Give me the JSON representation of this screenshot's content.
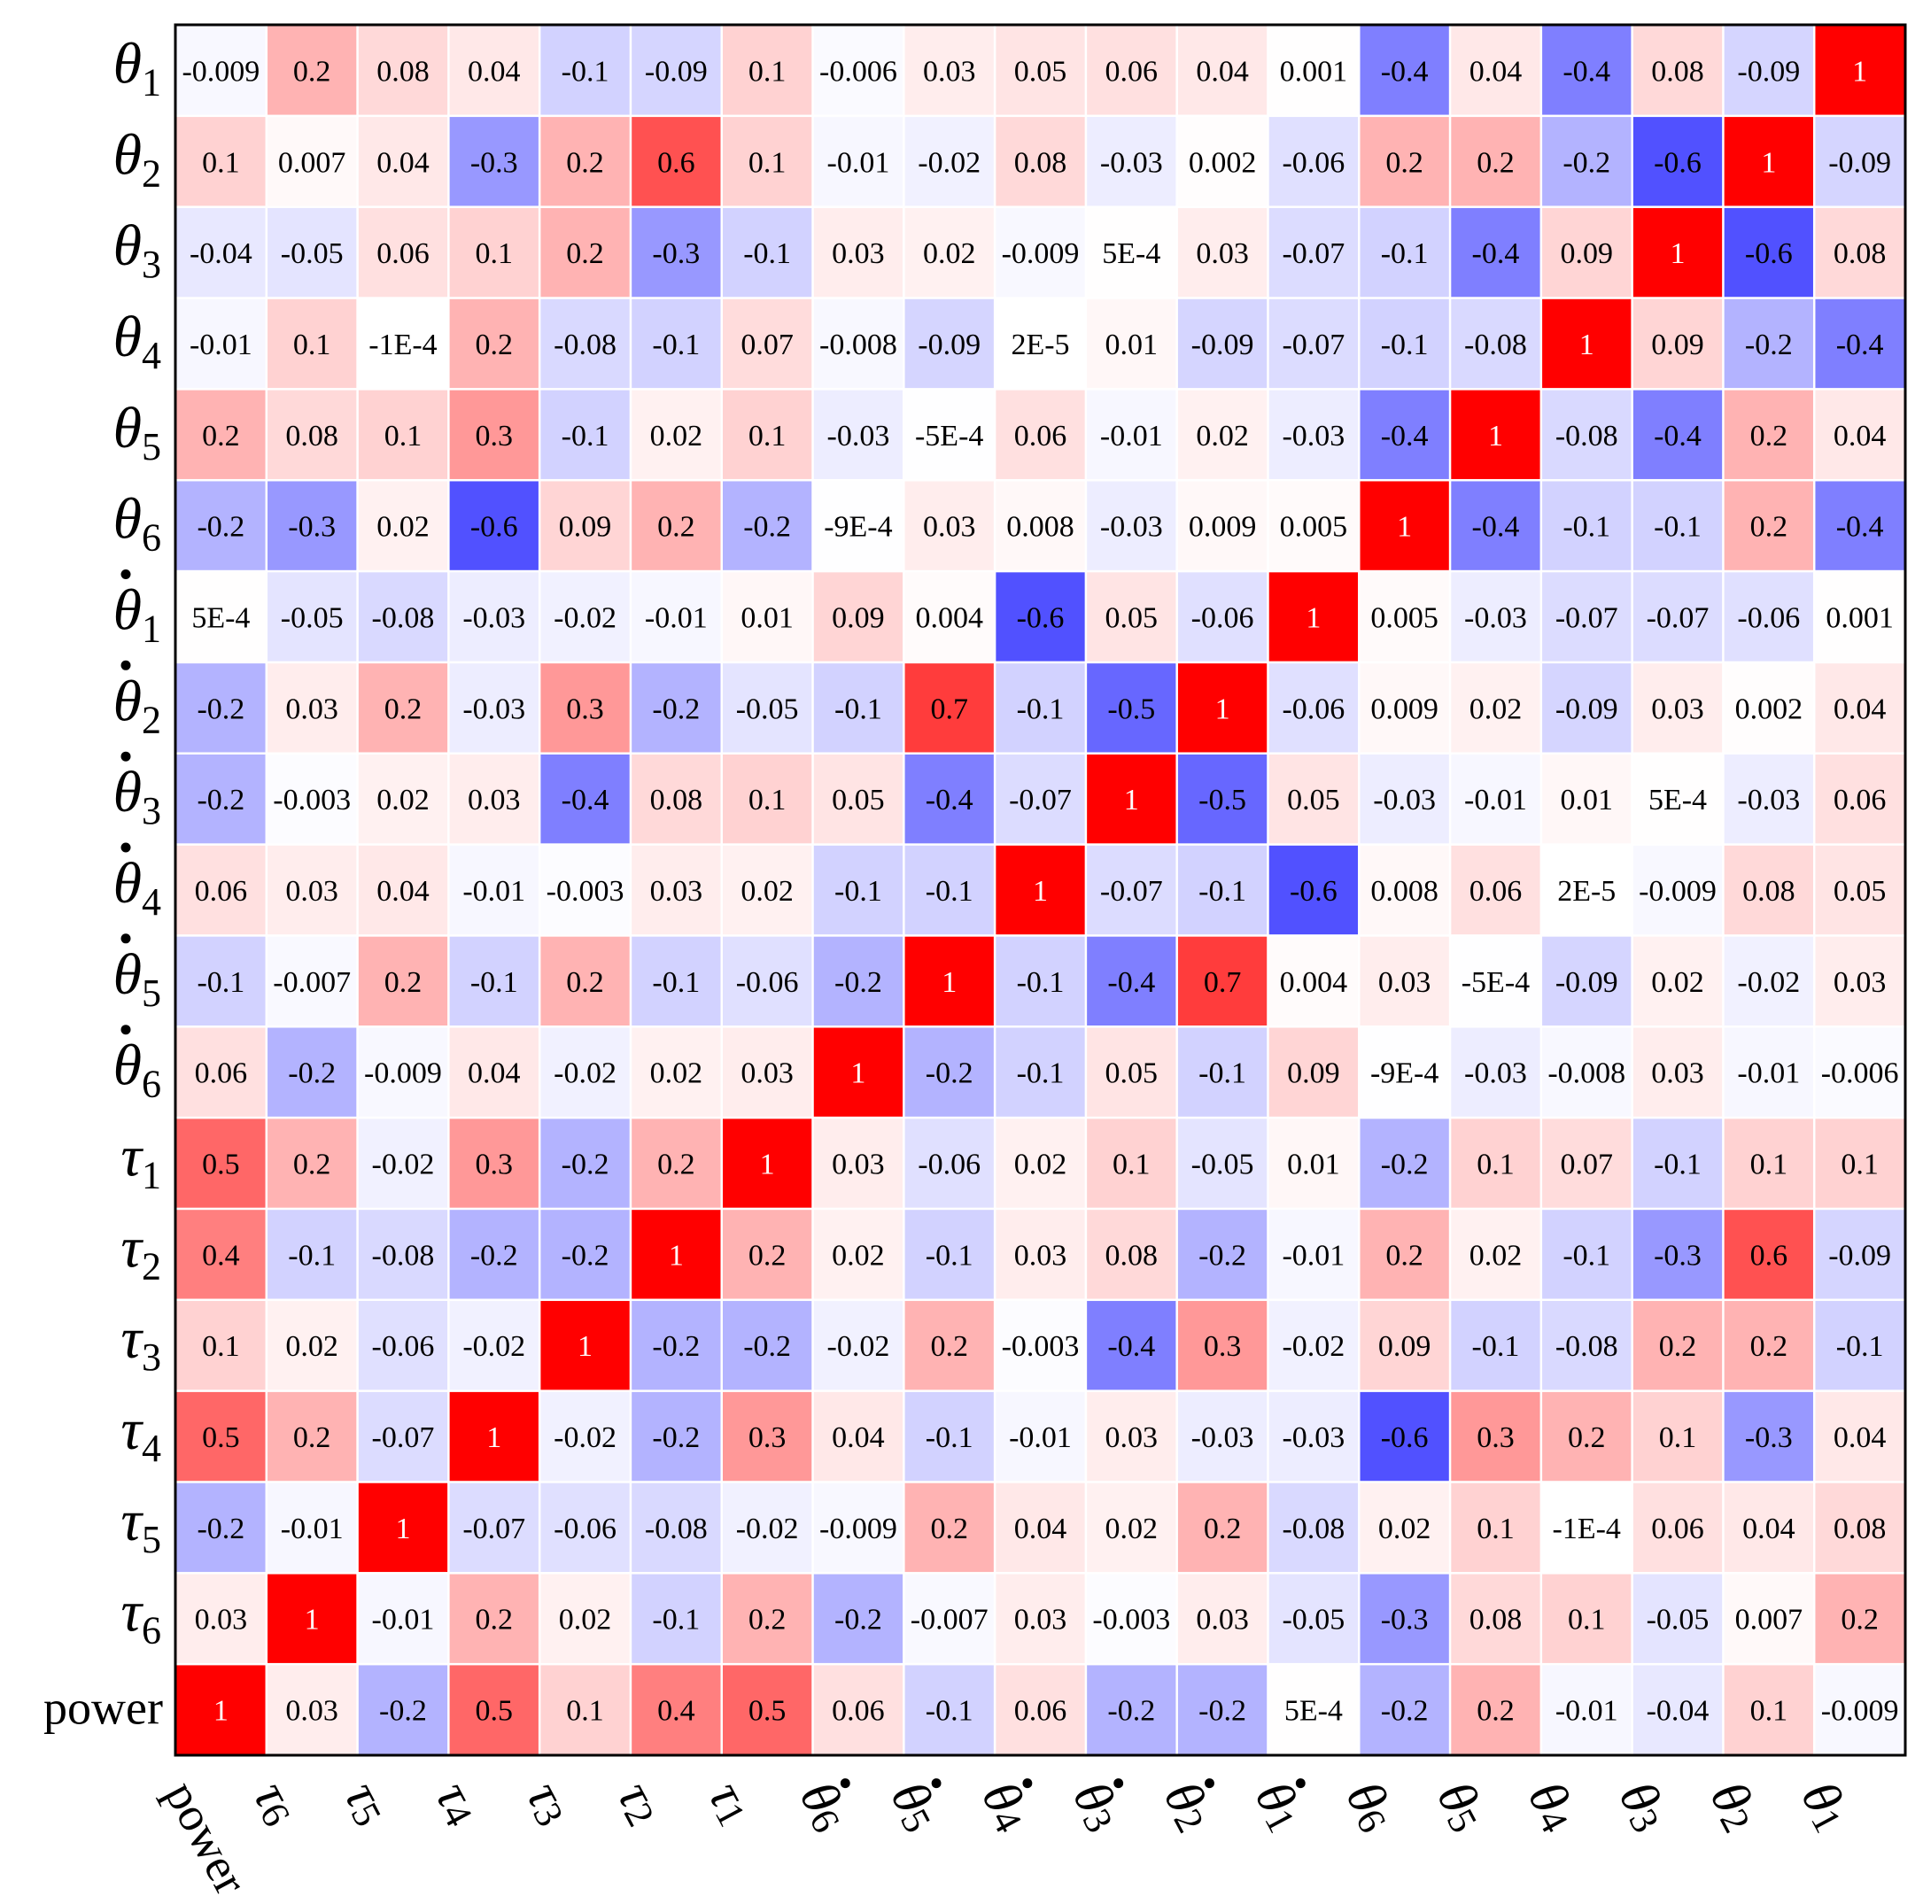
{
  "chart_data": {
    "type": "heatmap",
    "title": "",
    "xlabel": "",
    "ylabel": "",
    "value_range": [
      -1,
      1
    ],
    "colormap": {
      "negative": "#0000ff",
      "neutral": "#ffffff",
      "positive": "#ff0000"
    },
    "grid_line_color": "#ffffff",
    "frame_color": "#000000",
    "x_tick_labels": [
      {
        "base": "power",
        "sub": "",
        "dot": false
      },
      {
        "base": "τ",
        "sub": "6",
        "dot": false
      },
      {
        "base": "τ",
        "sub": "5",
        "dot": false
      },
      {
        "base": "τ",
        "sub": "4",
        "dot": false
      },
      {
        "base": "τ",
        "sub": "3",
        "dot": false
      },
      {
        "base": "τ",
        "sub": "2",
        "dot": false
      },
      {
        "base": "τ",
        "sub": "1",
        "dot": false
      },
      {
        "base": "θ",
        "sub": "6",
        "dot": true
      },
      {
        "base": "θ",
        "sub": "5",
        "dot": true
      },
      {
        "base": "θ",
        "sub": "4",
        "dot": true
      },
      {
        "base": "θ",
        "sub": "3",
        "dot": true
      },
      {
        "base": "θ",
        "sub": "2",
        "dot": true
      },
      {
        "base": "θ",
        "sub": "1",
        "dot": true
      },
      {
        "base": "θ",
        "sub": "6",
        "dot": false
      },
      {
        "base": "θ",
        "sub": "5",
        "dot": false
      },
      {
        "base": "θ",
        "sub": "4",
        "dot": false
      },
      {
        "base": "θ",
        "sub": "3",
        "dot": false
      },
      {
        "base": "θ",
        "sub": "2",
        "dot": false
      },
      {
        "base": "θ",
        "sub": "1",
        "dot": false
      }
    ],
    "y_tick_labels": [
      {
        "base": "θ",
        "sub": "1",
        "dot": false
      },
      {
        "base": "θ",
        "sub": "2",
        "dot": false
      },
      {
        "base": "θ",
        "sub": "3",
        "dot": false
      },
      {
        "base": "θ",
        "sub": "4",
        "dot": false
      },
      {
        "base": "θ",
        "sub": "5",
        "dot": false
      },
      {
        "base": "θ",
        "sub": "6",
        "dot": false
      },
      {
        "base": "θ",
        "sub": "1",
        "dot": true
      },
      {
        "base": "θ",
        "sub": "2",
        "dot": true
      },
      {
        "base": "θ",
        "sub": "3",
        "dot": true
      },
      {
        "base": "θ",
        "sub": "4",
        "dot": true
      },
      {
        "base": "θ",
        "sub": "5",
        "dot": true
      },
      {
        "base": "θ",
        "sub": "6",
        "dot": true
      },
      {
        "base": "τ",
        "sub": "1",
        "dot": false
      },
      {
        "base": "τ",
        "sub": "2",
        "dot": false
      },
      {
        "base": "τ",
        "sub": "3",
        "dot": false
      },
      {
        "base": "τ",
        "sub": "4",
        "dot": false
      },
      {
        "base": "τ",
        "sub": "5",
        "dot": false
      },
      {
        "base": "τ",
        "sub": "6",
        "dot": false
      },
      {
        "base": "power",
        "sub": "",
        "dot": false
      }
    ],
    "cells": [
      [
        "-0.009",
        "0.2",
        "0.08",
        "0.04",
        "-0.1",
        "-0.09",
        "0.1",
        "-0.006",
        "0.03",
        "0.05",
        "0.06",
        "0.04",
        "0.001",
        "-0.4",
        "0.04",
        "-0.4",
        "0.08",
        "-0.09",
        "1"
      ],
      [
        "0.1",
        "0.007",
        "0.04",
        "-0.3",
        "0.2",
        "0.6",
        "0.1",
        "-0.01",
        "-0.02",
        "0.08",
        "-0.03",
        "0.002",
        "-0.06",
        "0.2",
        "0.2",
        "-0.2",
        "-0.6",
        "1",
        "-0.09"
      ],
      [
        "-0.04",
        "-0.05",
        "0.06",
        "0.1",
        "0.2",
        "-0.3",
        "-0.1",
        "0.03",
        "0.02",
        "-0.009",
        "5E-4",
        "0.03",
        "-0.07",
        "-0.1",
        "-0.4",
        "0.09",
        "1",
        "-0.6",
        "0.08"
      ],
      [
        "-0.01",
        "0.1",
        "-1E-4",
        "0.2",
        "-0.08",
        "-0.1",
        "0.07",
        "-0.008",
        "-0.09",
        "2E-5",
        "0.01",
        "-0.09",
        "-0.07",
        "-0.1",
        "-0.08",
        "1",
        "0.09",
        "-0.2",
        "-0.4"
      ],
      [
        "0.2",
        "0.08",
        "0.1",
        "0.3",
        "-0.1",
        "0.02",
        "0.1",
        "-0.03",
        "-5E-4",
        "0.06",
        "-0.01",
        "0.02",
        "-0.03",
        "-0.4",
        "1",
        "-0.08",
        "-0.4",
        "0.2",
        "0.04"
      ],
      [
        "-0.2",
        "-0.3",
        "0.02",
        "-0.6",
        "0.09",
        "0.2",
        "-0.2",
        "-9E-4",
        "0.03",
        "0.008",
        "-0.03",
        "0.009",
        "0.005",
        "1",
        "-0.4",
        "-0.1",
        "-0.1",
        "0.2",
        "-0.4"
      ],
      [
        "5E-4",
        "-0.05",
        "-0.08",
        "-0.03",
        "-0.02",
        "-0.01",
        "0.01",
        "0.09",
        "0.004",
        "-0.6",
        "0.05",
        "-0.06",
        "1",
        "0.005",
        "-0.03",
        "-0.07",
        "-0.07",
        "-0.06",
        "0.001"
      ],
      [
        "-0.2",
        "0.03",
        "0.2",
        "-0.03",
        "0.3",
        "-0.2",
        "-0.05",
        "-0.1",
        "0.7",
        "-0.1",
        "-0.5",
        "1",
        "-0.06",
        "0.009",
        "0.02",
        "-0.09",
        "0.03",
        "0.002",
        "0.04"
      ],
      [
        "-0.2",
        "-0.003",
        "0.02",
        "0.03",
        "-0.4",
        "0.08",
        "0.1",
        "0.05",
        "-0.4",
        "-0.07",
        "1",
        "-0.5",
        "0.05",
        "-0.03",
        "-0.01",
        "0.01",
        "5E-4",
        "-0.03",
        "0.06"
      ],
      [
        "0.06",
        "0.03",
        "0.04",
        "-0.01",
        "-0.003",
        "0.03",
        "0.02",
        "-0.1",
        "-0.1",
        "1",
        "-0.07",
        "-0.1",
        "-0.6",
        "0.008",
        "0.06",
        "2E-5",
        "-0.009",
        "0.08",
        "0.05"
      ],
      [
        "-0.1",
        "-0.007",
        "0.2",
        "-0.1",
        "0.2",
        "-0.1",
        "-0.06",
        "-0.2",
        "1",
        "-0.1",
        "-0.4",
        "0.7",
        "0.004",
        "0.03",
        "-5E-4",
        "-0.09",
        "0.02",
        "-0.02",
        "0.03"
      ],
      [
        "0.06",
        "-0.2",
        "-0.009",
        "0.04",
        "-0.02",
        "0.02",
        "0.03",
        "1",
        "-0.2",
        "-0.1",
        "0.05",
        "-0.1",
        "0.09",
        "-9E-4",
        "-0.03",
        "-0.008",
        "0.03",
        "-0.01",
        "-0.006"
      ],
      [
        "0.5",
        "0.2",
        "-0.02",
        "0.3",
        "-0.2",
        "0.2",
        "1",
        "0.03",
        "-0.06",
        "0.02",
        "0.1",
        "-0.05",
        "0.01",
        "-0.2",
        "0.1",
        "0.07",
        "-0.1",
        "0.1",
        "0.1"
      ],
      [
        "0.4",
        "-0.1",
        "-0.08",
        "-0.2",
        "-0.2",
        "1",
        "0.2",
        "0.02",
        "-0.1",
        "0.03",
        "0.08",
        "-0.2",
        "-0.01",
        "0.2",
        "0.02",
        "-0.1",
        "-0.3",
        "0.6",
        "-0.09"
      ],
      [
        "0.1",
        "0.02",
        "-0.06",
        "-0.02",
        "1",
        "-0.2",
        "-0.2",
        "-0.02",
        "0.2",
        "-0.003",
        "-0.4",
        "0.3",
        "-0.02",
        "0.09",
        "-0.1",
        "-0.08",
        "0.2",
        "0.2",
        "-0.1"
      ],
      [
        "0.5",
        "0.2",
        "-0.07",
        "1",
        "-0.02",
        "-0.2",
        "0.3",
        "0.04",
        "-0.1",
        "-0.01",
        "0.03",
        "-0.03",
        "-0.03",
        "-0.6",
        "0.3",
        "0.2",
        "0.1",
        "-0.3",
        "0.04"
      ],
      [
        "-0.2",
        "-0.01",
        "1",
        "-0.07",
        "-0.06",
        "-0.08",
        "-0.02",
        "-0.009",
        "0.2",
        "0.04",
        "0.02",
        "0.2",
        "-0.08",
        "0.02",
        "0.1",
        "-1E-4",
        "0.06",
        "0.04",
        "0.08"
      ],
      [
        "0.03",
        "1",
        "-0.01",
        "0.2",
        "0.02",
        "-0.1",
        "0.2",
        "-0.2",
        "-0.007",
        "0.03",
        "-0.003",
        "0.03",
        "-0.05",
        "-0.3",
        "0.08",
        "0.1",
        "-0.05",
        "0.007",
        "0.2"
      ],
      [
        "1",
        "0.03",
        "-0.2",
        "0.5",
        "0.1",
        "0.4",
        "0.5",
        "0.06",
        "-0.1",
        "0.06",
        "-0.2",
        "-0.2",
        "5E-4",
        "-0.2",
        "0.2",
        "-0.01",
        "-0.04",
        "0.1",
        "-0.009"
      ]
    ]
  }
}
